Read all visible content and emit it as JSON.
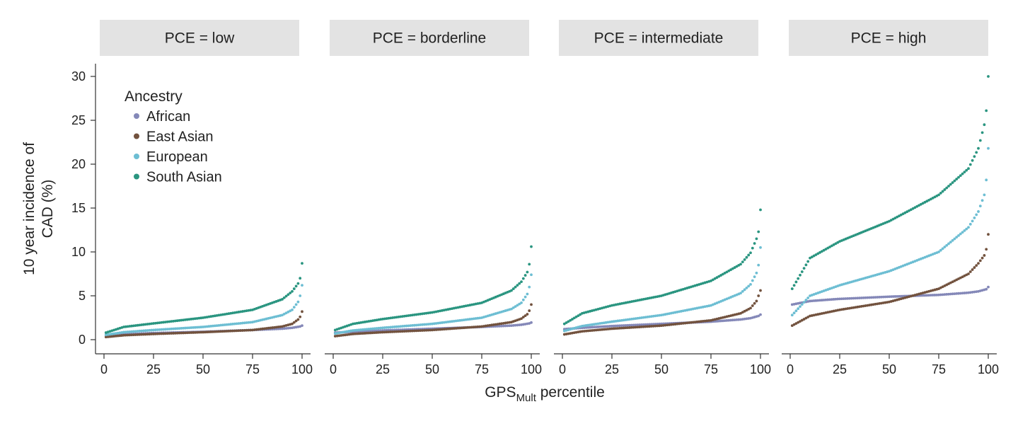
{
  "chart_data": {
    "type": "scatter",
    "xlabel": "GPS",
    "xlabel_sub": "Mult",
    "xlabel_suffix": " percentile",
    "ylabel_line1": "10 year incidence of",
    "ylabel_line2": "CAD (%)",
    "xlim": [
      0,
      100
    ],
    "ylim": [
      0,
      30
    ],
    "x_ticks": [
      "0",
      "25",
      "50",
      "75",
      "100"
    ],
    "y_ticks": [
      "0",
      "5",
      "10",
      "15",
      "20",
      "25",
      "30"
    ],
    "legend": {
      "title": "Ancestry",
      "placement": "top-left",
      "items": [
        "African",
        "East Asian",
        "European",
        "South Asian"
      ]
    },
    "series_colors": {
      "African": "#8488b8",
      "East Asian": "#72523e",
      "European": "#6dbed3",
      "South Asian": "#2a9580"
    },
    "facets": [
      {
        "label": "PCE = low",
        "series": [
          {
            "name": "African",
            "points": [
              [
                1,
                0.5
              ],
              [
                10,
                0.6
              ],
              [
                25,
                0.75
              ],
              [
                50,
                0.9
              ],
              [
                75,
                1.1
              ],
              [
                90,
                1.25
              ],
              [
                95,
                1.35
              ],
              [
                99,
                1.5
              ],
              [
                100,
                1.6
              ]
            ]
          },
          {
            "name": "East Asian",
            "points": [
              [
                1,
                0.3
              ],
              [
                10,
                0.5
              ],
              [
                25,
                0.65
              ],
              [
                50,
                0.85
              ],
              [
                75,
                1.1
              ],
              [
                90,
                1.5
              ],
              [
                95,
                1.8
              ],
              [
                98,
                2.3
              ],
              [
                99,
                2.6
              ],
              [
                100,
                3.2
              ]
            ]
          },
          {
            "name": "European",
            "points": [
              [
                1,
                0.55
              ],
              [
                10,
                0.85
              ],
              [
                25,
                1.1
              ],
              [
                50,
                1.45
              ],
              [
                75,
                2.0
              ],
              [
                90,
                2.8
              ],
              [
                95,
                3.4
              ],
              [
                98,
                4.3
              ],
              [
                99,
                5.0
              ],
              [
                100,
                6.2
              ]
            ]
          },
          {
            "name": "South Asian",
            "points": [
              [
                1,
                0.8
              ],
              [
                10,
                1.45
              ],
              [
                25,
                1.85
              ],
              [
                50,
                2.5
              ],
              [
                75,
                3.4
              ],
              [
                90,
                4.6
              ],
              [
                95,
                5.5
              ],
              [
                98,
                6.4
              ],
              [
                99,
                7.0
              ],
              [
                100,
                8.7
              ]
            ]
          }
        ]
      },
      {
        "label": "PCE = borderline",
        "series": [
          {
            "name": "African",
            "points": [
              [
                1,
                0.8
              ],
              [
                10,
                0.9
              ],
              [
                25,
                1.05
              ],
              [
                50,
                1.25
              ],
              [
                75,
                1.45
              ],
              [
                90,
                1.6
              ],
              [
                95,
                1.7
              ],
              [
                99,
                1.85
              ],
              [
                100,
                1.95
              ]
            ]
          },
          {
            "name": "East Asian",
            "points": [
              [
                1,
                0.4
              ],
              [
                10,
                0.65
              ],
              [
                25,
                0.85
              ],
              [
                50,
                1.1
              ],
              [
                75,
                1.5
              ],
              [
                90,
                2.0
              ],
              [
                95,
                2.4
              ],
              [
                98,
                2.9
              ],
              [
                99,
                3.3
              ],
              [
                100,
                4.0
              ]
            ]
          },
          {
            "name": "European",
            "points": [
              [
                1,
                0.7
              ],
              [
                10,
                1.05
              ],
              [
                25,
                1.35
              ],
              [
                50,
                1.8
              ],
              [
                75,
                2.5
              ],
              [
                90,
                3.5
              ],
              [
                95,
                4.2
              ],
              [
                98,
                5.2
              ],
              [
                99,
                6.0
              ],
              [
                100,
                7.4
              ]
            ]
          },
          {
            "name": "South Asian",
            "points": [
              [
                1,
                1.1
              ],
              [
                10,
                1.8
              ],
              [
                25,
                2.35
              ],
              [
                50,
                3.1
              ],
              [
                75,
                4.2
              ],
              [
                90,
                5.6
              ],
              [
                95,
                6.6
              ],
              [
                98,
                7.7
              ],
              [
                99,
                8.6
              ],
              [
                100,
                10.6
              ]
            ]
          }
        ]
      },
      {
        "label": "PCE = intermediate",
        "series": [
          {
            "name": "African",
            "points": [
              [
                1,
                1.2
              ],
              [
                10,
                1.35
              ],
              [
                25,
                1.55
              ],
              [
                50,
                1.8
              ],
              [
                75,
                2.05
              ],
              [
                90,
                2.3
              ],
              [
                95,
                2.45
              ],
              [
                99,
                2.7
              ],
              [
                100,
                2.85
              ]
            ]
          },
          {
            "name": "East Asian",
            "points": [
              [
                1,
                0.6
              ],
              [
                10,
                0.95
              ],
              [
                25,
                1.25
              ],
              [
                50,
                1.6
              ],
              [
                75,
                2.2
              ],
              [
                90,
                3.0
              ],
              [
                95,
                3.6
              ],
              [
                98,
                4.4
              ],
              [
                99,
                5.0
              ],
              [
                100,
                5.6
              ]
            ]
          },
          {
            "name": "European",
            "points": [
              [
                1,
                1.0
              ],
              [
                10,
                1.55
              ],
              [
                25,
                2.05
              ],
              [
                50,
                2.8
              ],
              [
                75,
                3.9
              ],
              [
                90,
                5.3
              ],
              [
                95,
                6.3
              ],
              [
                98,
                7.6
              ],
              [
                99,
                8.5
              ],
              [
                100,
                10.5
              ]
            ]
          },
          {
            "name": "South Asian",
            "points": [
              [
                1,
                1.8
              ],
              [
                10,
                3.0
              ],
              [
                25,
                3.9
              ],
              [
                50,
                5.0
              ],
              [
                75,
                6.7
              ],
              [
                90,
                8.6
              ],
              [
                95,
                9.9
              ],
              [
                98,
                11.5
              ],
              [
                99,
                12.3
              ],
              [
                100,
                14.8
              ]
            ]
          }
        ]
      },
      {
        "label": "PCE = high",
        "series": [
          {
            "name": "African",
            "points": [
              [
                1,
                4.0
              ],
              [
                10,
                4.4
              ],
              [
                25,
                4.65
              ],
              [
                50,
                4.9
              ],
              [
                75,
                5.1
              ],
              [
                90,
                5.35
              ],
              [
                95,
                5.5
              ],
              [
                99,
                5.75
              ],
              [
                100,
                6.0
              ]
            ]
          },
          {
            "name": "East Asian",
            "points": [
              [
                1,
                1.6
              ],
              [
                10,
                2.7
              ],
              [
                25,
                3.4
              ],
              [
                50,
                4.3
              ],
              [
                75,
                5.8
              ],
              [
                90,
                7.5
              ],
              [
                95,
                8.7
              ],
              [
                98,
                9.6
              ],
              [
                99,
                10.3
              ],
              [
                100,
                12.0
              ]
            ]
          },
          {
            "name": "European",
            "points": [
              [
                1,
                2.8
              ],
              [
                10,
                5.0
              ],
              [
                25,
                6.2
              ],
              [
                50,
                7.8
              ],
              [
                75,
                10.0
              ],
              [
                90,
                12.8
              ],
              [
                95,
                14.6
              ],
              [
                98,
                16.5
              ],
              [
                99,
                18.2
              ],
              [
                100,
                21.8
              ]
            ]
          },
          {
            "name": "South Asian",
            "points": [
              [
                1,
                5.8
              ],
              [
                10,
                9.3
              ],
              [
                25,
                11.2
              ],
              [
                50,
                13.5
              ],
              [
                75,
                16.5
              ],
              [
                90,
                19.5
              ],
              [
                95,
                21.8
              ],
              [
                98,
                24.5
              ],
              [
                99,
                26.1
              ],
              [
                100,
                30.0
              ]
            ]
          }
        ]
      }
    ]
  }
}
